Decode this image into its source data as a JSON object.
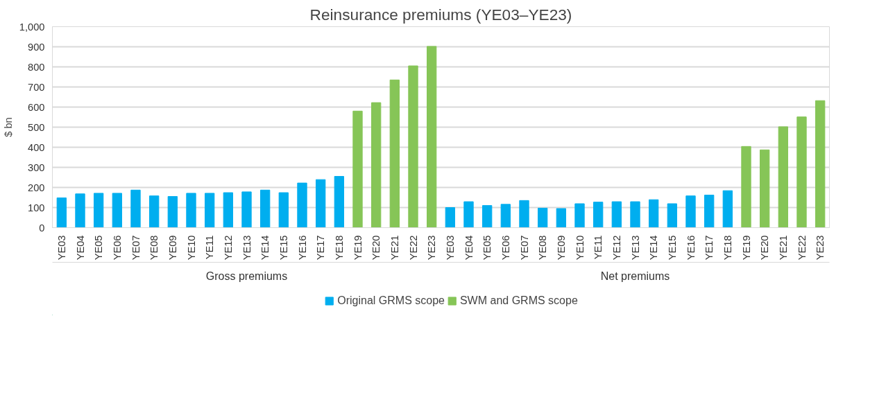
{
  "chart_data": {
    "type": "bar",
    "title": "Reinsurance premiums (YE03–YE23)",
    "ylabel": "$ bn",
    "categories": [
      "YE03",
      "YE04",
      "YE05",
      "YE06",
      "YE07",
      "YE08",
      "YE09",
      "YE10",
      "YE11",
      "YE12",
      "YE13",
      "YE14",
      "YE15",
      "YE16",
      "YE17",
      "YE18",
      "YE19",
      "YE20",
      "YE21",
      "YE22",
      "YE23",
      "YE03",
      "YE04",
      "YE05",
      "YE06",
      "YE07",
      "YE08",
      "YE09",
      "YE10",
      "YE11",
      "YE12",
      "YE13",
      "YE14",
      "YE15",
      "YE16",
      "YE17",
      "YE18",
      "YE19",
      "YE20",
      "YE21",
      "YE22",
      "YE23"
    ],
    "series": [
      {
        "name": "Original GRMS scope",
        "color": "#00aeef",
        "values": [
          148,
          168,
          171,
          171,
          187,
          158,
          155,
          171,
          171,
          174,
          178,
          187,
          174,
          222,
          239,
          255,
          null,
          null,
          null,
          null,
          null,
          100,
          129,
          110,
          116,
          135,
          97,
          95,
          119,
          127,
          129,
          129,
          139,
          119,
          158,
          162,
          184,
          null,
          null,
          null,
          null,
          null
        ]
      },
      {
        "name": "SWM and GRMS scope",
        "color": "#86c557",
        "values": [
          null,
          null,
          null,
          null,
          null,
          null,
          null,
          null,
          null,
          null,
          null,
          null,
          null,
          null,
          null,
          null,
          580,
          622,
          735,
          805,
          902,
          null,
          null,
          null,
          null,
          null,
          null,
          null,
          null,
          null,
          null,
          null,
          null,
          null,
          null,
          null,
          null,
          404,
          387,
          502,
          551,
          632
        ]
      }
    ],
    "ylim": [
      0,
      1000
    ],
    "yticks": [
      0,
      100,
      200,
      300,
      400,
      500,
      600,
      700,
      800,
      900,
      {
        "value": 1000,
        "label": "1,000"
      }
    ],
    "grid": "y",
    "legend": "bottom",
    "annotations": [
      "Gross premiums",
      "Net premiums"
    ]
  }
}
